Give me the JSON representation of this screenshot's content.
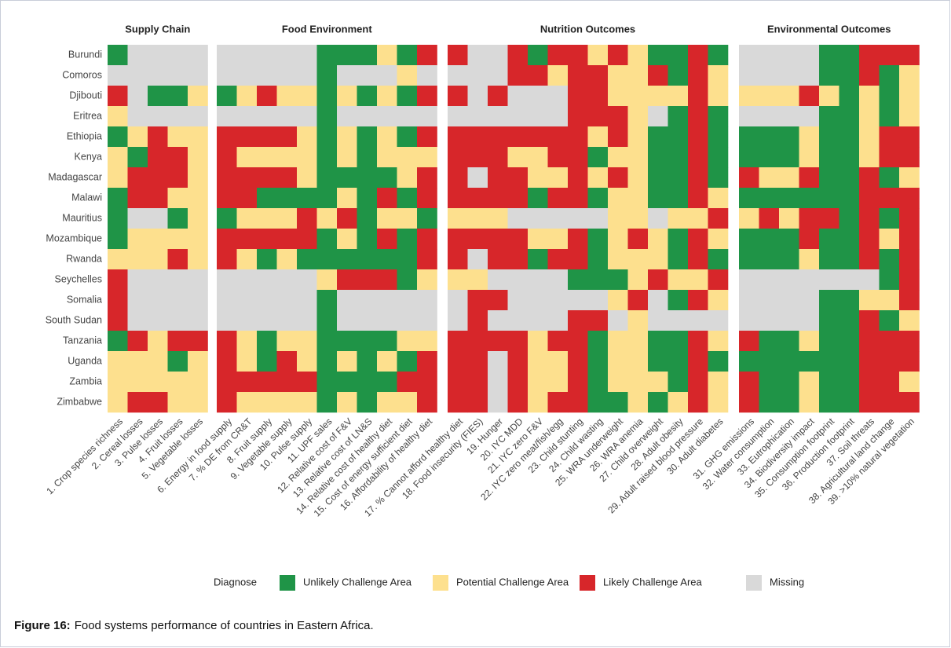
{
  "chart_data": {
    "type": "heatmap",
    "rows": [
      "Burundi",
      "Comoros",
      "Djibouti",
      "Eritrea",
      "Ethiopia",
      "Kenya",
      "Madagascar",
      "Malawi",
      "Mauritius",
      "Mozambique",
      "Rwanda",
      "Seychelles",
      "Somalia",
      "South Sudan",
      "Tanzania",
      "Uganda",
      "Zambia",
      "Zimbabwe"
    ],
    "panels": [
      {
        "title": "Supply Chain",
        "columns": [
          "1. Crop species richness",
          "2. Cereal losses",
          "3. Pulse losses",
          "4. Fruit losses",
          "5. Vegetable losses"
        ],
        "values": [
          [
            0,
            3,
            3,
            3,
            3
          ],
          [
            3,
            3,
            3,
            3,
            3
          ],
          [
            2,
            3,
            0,
            0,
            1
          ],
          [
            1,
            3,
            3,
            3,
            3
          ],
          [
            0,
            1,
            2,
            1,
            1
          ],
          [
            1,
            0,
            2,
            2,
            1
          ],
          [
            1,
            2,
            2,
            2,
            1
          ],
          [
            0,
            2,
            2,
            1,
            1
          ],
          [
            0,
            3,
            3,
            0,
            1
          ],
          [
            0,
            1,
            1,
            1,
            1
          ],
          [
            1,
            1,
            1,
            2,
            1
          ],
          [
            2,
            3,
            3,
            3,
            3
          ],
          [
            2,
            3,
            3,
            3,
            3
          ],
          [
            2,
            3,
            3,
            3,
            3
          ],
          [
            0,
            2,
            1,
            2,
            2
          ],
          [
            1,
            1,
            1,
            0,
            1
          ],
          [
            1,
            1,
            1,
            1,
            1
          ],
          [
            1,
            2,
            2,
            1,
            1
          ]
        ]
      },
      {
        "title": "Food Environment",
        "columns": [
          "6. Energy in food supply",
          "7. % DE from CR&T",
          "8. Fruit supply",
          "9. Vegetable supply",
          "10. Pulse supply",
          "11. UPF sales",
          "12. Relative cost of F&V",
          "13. Relative cost of LN&S",
          "14. Relative cost of healthy diet",
          "15. Cost of energy sufficient diet",
          "16. Affordability of healthy diet"
        ],
        "values": [
          [
            3,
            3,
            3,
            3,
            3,
            0,
            0,
            0,
            1,
            0,
            2
          ],
          [
            3,
            3,
            3,
            3,
            3,
            0,
            3,
            3,
            3,
            1,
            3
          ],
          [
            0,
            1,
            2,
            1,
            1,
            0,
            1,
            0,
            1,
            0,
            2
          ],
          [
            3,
            3,
            3,
            3,
            3,
            0,
            3,
            3,
            3,
            3,
            3
          ],
          [
            2,
            2,
            2,
            2,
            1,
            0,
            1,
            0,
            1,
            0,
            2
          ],
          [
            2,
            1,
            1,
            1,
            1,
            0,
            1,
            0,
            1,
            1,
            1
          ],
          [
            2,
            2,
            2,
            2,
            1,
            0,
            0,
            0,
            0,
            1,
            2
          ],
          [
            2,
            2,
            0,
            0,
            0,
            0,
            1,
            0,
            2,
            0,
            2
          ],
          [
            0,
            1,
            1,
            1,
            2,
            1,
            2,
            0,
            1,
            1,
            0
          ],
          [
            2,
            2,
            2,
            2,
            2,
            0,
            1,
            0,
            2,
            0,
            2
          ],
          [
            2,
            1,
            0,
            1,
            0,
            0,
            0,
            0,
            0,
            0,
            2
          ],
          [
            3,
            3,
            3,
            3,
            3,
            1,
            2,
            2,
            2,
            0,
            1
          ],
          [
            3,
            3,
            3,
            3,
            3,
            0,
            3,
            3,
            3,
            3,
            3
          ],
          [
            3,
            3,
            3,
            3,
            3,
            0,
            3,
            3,
            3,
            3,
            3
          ],
          [
            2,
            1,
            0,
            1,
            1,
            0,
            0,
            0,
            0,
            1,
            1
          ],
          [
            2,
            1,
            0,
            2,
            1,
            0,
            1,
            0,
            1,
            0,
            2
          ],
          [
            2,
            2,
            2,
            2,
            2,
            0,
            0,
            0,
            0,
            2,
            2
          ],
          [
            2,
            1,
            1,
            1,
            1,
            0,
            1,
            0,
            1,
            1,
            2
          ]
        ]
      },
      {
        "title": "Nutrition Outcomes",
        "columns": [
          "17. % Cannot afford healthy diet",
          "18. Food insecurity (FIES)",
          "19. Hunger",
          "20. IYC MDD",
          "21. IYC zero F&V",
          "22. IYC zero meat/fish/egg",
          "23. Child stunting",
          "24. Child wasting",
          "25. WRA underweight",
          "26. WRA anemia",
          "27. Child overweight",
          "28. Adult obesity",
          "29. Adult raised blood pressure",
          "30. Adult diabetes"
        ],
        "values": [
          [
            2,
            3,
            3,
            2,
            0,
            2,
            2,
            1,
            2,
            1,
            0,
            0,
            2,
            0
          ],
          [
            3,
            3,
            3,
            2,
            2,
            1,
            2,
            2,
            1,
            1,
            2,
            0,
            2,
            1
          ],
          [
            2,
            3,
            2,
            3,
            3,
            3,
            2,
            2,
            1,
            1,
            1,
            1,
            2,
            1
          ],
          [
            3,
            3,
            3,
            3,
            3,
            3,
            2,
            2,
            2,
            1,
            3,
            0,
            2,
            0
          ],
          [
            2,
            2,
            2,
            2,
            2,
            2,
            2,
            1,
            2,
            1,
            0,
            0,
            2,
            0
          ],
          [
            2,
            2,
            2,
            1,
            1,
            2,
            2,
            0,
            1,
            1,
            0,
            0,
            2,
            0
          ],
          [
            2,
            3,
            2,
            2,
            1,
            1,
            2,
            1,
            2,
            1,
            0,
            0,
            2,
            0
          ],
          [
            2,
            2,
            2,
            2,
            0,
            2,
            2,
            0,
            1,
            1,
            0,
            0,
            2,
            1
          ],
          [
            1,
            1,
            1,
            3,
            3,
            3,
            3,
            3,
            1,
            1,
            3,
            1,
            1,
            2
          ],
          [
            2,
            2,
            2,
            2,
            1,
            1,
            2,
            0,
            1,
            2,
            1,
            0,
            2,
            1
          ],
          [
            2,
            3,
            2,
            2,
            0,
            2,
            2,
            0,
            1,
            1,
            1,
            0,
            2,
            0
          ],
          [
            1,
            1,
            3,
            3,
            3,
            3,
            0,
            0,
            0,
            1,
            2,
            1,
            1,
            2
          ],
          [
            3,
            2,
            2,
            3,
            3,
            3,
            3,
            3,
            1,
            2,
            3,
            0,
            2,
            1
          ],
          [
            3,
            2,
            3,
            3,
            3,
            3,
            2,
            2,
            3,
            1,
            3,
            3,
            3,
            3
          ],
          [
            2,
            2,
            2,
            2,
            1,
            2,
            2,
            0,
            1,
            1,
            0,
            0,
            2,
            1
          ],
          [
            2,
            2,
            3,
            2,
            1,
            1,
            2,
            0,
            1,
            1,
            0,
            0,
            2,
            0
          ],
          [
            2,
            2,
            3,
            2,
            1,
            1,
            2,
            0,
            1,
            1,
            1,
            0,
            2,
            1
          ],
          [
            2,
            2,
            3,
            2,
            1,
            2,
            2,
            0,
            0,
            1,
            0,
            1,
            2,
            1
          ]
        ]
      },
      {
        "title": "Environmental Outcomes",
        "columns": [
          "31. GHG emissions",
          "32. Water consumption",
          "33. Eutrophication",
          "34. Biodiversity impact",
          "35. Consumption footprint",
          "36. Production footprint",
          "37. Soil threats",
          "38. Agricultural land change",
          "39. >10% natural vegetation"
        ],
        "values": [
          [
            3,
            3,
            3,
            3,
            0,
            0,
            2,
            2,
            2
          ],
          [
            3,
            3,
            3,
            3,
            0,
            0,
            2,
            0,
            1
          ],
          [
            1,
            1,
            1,
            2,
            1,
            0,
            1,
            0,
            1
          ],
          [
            3,
            3,
            3,
            3,
            0,
            0,
            1,
            0,
            1
          ],
          [
            0,
            0,
            0,
            1,
            0,
            0,
            1,
            2,
            2
          ],
          [
            0,
            0,
            0,
            1,
            0,
            0,
            1,
            2,
            2
          ],
          [
            2,
            1,
            1,
            2,
            0,
            0,
            2,
            0,
            1
          ],
          [
            0,
            0,
            0,
            0,
            0,
            0,
            2,
            2,
            2
          ],
          [
            1,
            2,
            1,
            2,
            2,
            0,
            2,
            0,
            2
          ],
          [
            0,
            0,
            0,
            2,
            0,
            0,
            2,
            1,
            2
          ],
          [
            0,
            0,
            0,
            1,
            0,
            0,
            2,
            0,
            2
          ],
          [
            3,
            3,
            3,
            3,
            3,
            3,
            3,
            0,
            2
          ],
          [
            3,
            3,
            3,
            3,
            0,
            0,
            1,
            1,
            2
          ],
          [
            3,
            3,
            3,
            3,
            0,
            0,
            2,
            0,
            1
          ],
          [
            2,
            0,
            0,
            1,
            0,
            0,
            2,
            2,
            2
          ],
          [
            0,
            0,
            0,
            0,
            0,
            0,
            2,
            2,
            2
          ],
          [
            2,
            0,
            0,
            1,
            0,
            0,
            2,
            2,
            1
          ],
          [
            2,
            0,
            0,
            1,
            0,
            0,
            2,
            2,
            2
          ]
        ]
      }
    ],
    "legend": {
      "title": "Diagnose",
      "items": [
        {
          "name": "Unlikely Challenge Area",
          "color": "#1f9447"
        },
        {
          "name": "Potential Challenge Area",
          "color": "#fde08e"
        },
        {
          "name": "Likely Challenge Area",
          "color": "#d7262a"
        },
        {
          "name": "Missing",
          "color": "#d9d9d9"
        }
      ]
    }
  },
  "caption": {
    "label": "Figure 16:",
    "text": "Food systems performance of countries in Eastern Africa."
  }
}
